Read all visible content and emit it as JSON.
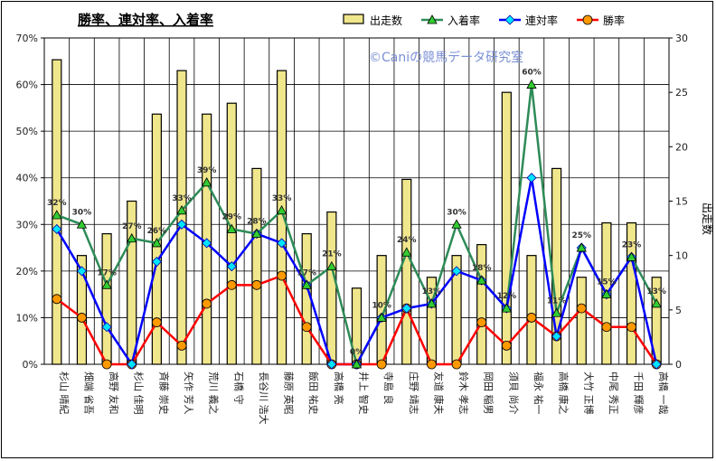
{
  "chart_data": {
    "type": "bar+line",
    "title": "勝率、連対率、入着率",
    "watermark": "©Caniの競馬データ研究室",
    "y2label": "出走数",
    "ylim_left": [
      0,
      70
    ],
    "ylim_right": [
      0,
      30
    ],
    "left_ticks": [
      "0%",
      "10%",
      "20%",
      "30%",
      "40%",
      "50%",
      "60%",
      "70%"
    ],
    "right_ticks": [
      "0",
      "5",
      "10",
      "15",
      "20",
      "25",
      "30"
    ],
    "grid": true,
    "legend_position": "top",
    "categories": [
      "杉山 晴紀",
      "畑端 省吾",
      "高野 友和",
      "杉山 佳明",
      "斉藤 崇史",
      "矢作 芳人",
      "荒川 義之",
      "石橋 守",
      "長谷川 浩大",
      "藤原 英昭",
      "飯田 祐史",
      "高橋 亮",
      "井上 智史",
      "寺島 良",
      "庄野 靖志",
      "友道 康夫",
      "鈴木 孝志",
      "岡田 稲男",
      "須貝 尚介",
      "福永 祐一",
      "高橋 康之",
      "大竹 正博",
      "中尾 秀正",
      "千田 輝彦",
      "高橋 一哉"
    ],
    "series": [
      {
        "name": "出走数",
        "type": "bar",
        "axis": "right",
        "color": "#f0e68c",
        "values": [
          28,
          10,
          12,
          15,
          23,
          27,
          23,
          24,
          18,
          27,
          12,
          14,
          7,
          10,
          17,
          8,
          10,
          11,
          25,
          10,
          18,
          8,
          13,
          13,
          8
        ]
      },
      {
        "name": "入着率",
        "type": "line",
        "axis": "left",
        "color": "#2e8b57",
        "values": [
          32,
          30,
          17,
          27,
          26,
          33,
          39,
          29,
          28,
          33,
          17,
          21,
          0,
          10,
          24,
          13,
          30,
          18,
          12,
          60,
          11,
          25,
          15,
          23,
          13
        ]
      },
      {
        "name": "連対率",
        "type": "line",
        "axis": "left",
        "color": "#0000ff",
        "values": [
          29,
          20,
          8,
          0,
          22,
          30,
          26,
          21,
          28,
          26,
          17,
          0,
          0,
          10,
          12,
          13,
          20,
          18,
          12,
          40,
          6,
          25,
          15,
          23,
          0
        ]
      },
      {
        "name": "勝率",
        "type": "line",
        "axis": "left",
        "color": "#ff0000",
        "values": [
          14,
          10,
          0,
          0,
          9,
          4,
          13,
          17,
          17,
          19,
          8,
          0,
          0,
          0,
          12,
          0,
          0,
          9,
          4,
          10,
          6,
          12,
          8,
          8,
          0
        ]
      }
    ],
    "data_labels": [
      "32%",
      "30%",
      "17%",
      "27%",
      "26%",
      "33%",
      "39%",
      "29%",
      "28%",
      "33%",
      "17%",
      "21%",
      "0%",
      "10%",
      "24%",
      "13%",
      "30%",
      "18%",
      "12%",
      "60%",
      "11%",
      "25%",
      "15%",
      "23%",
      "13%"
    ]
  }
}
